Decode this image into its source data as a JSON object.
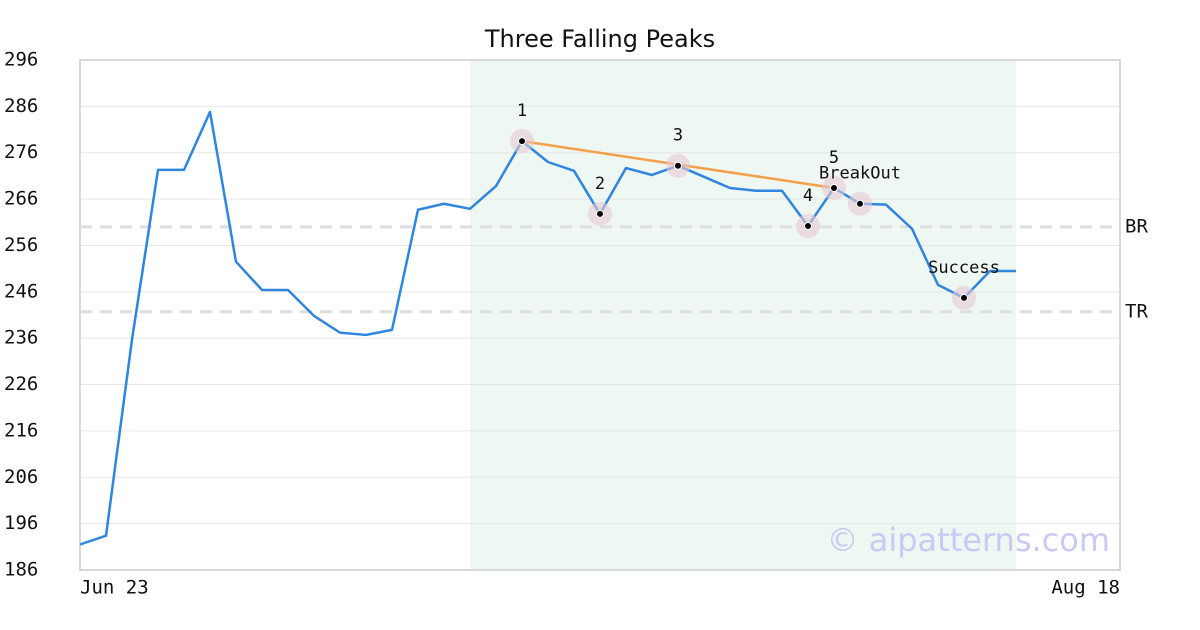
{
  "chart_data": {
    "type": "line",
    "title": "Three Falling Peaks",
    "categories": [
      "Jun 23",
      null,
      null,
      null,
      null,
      null,
      null,
      null,
      null,
      null,
      null,
      null,
      null,
      null,
      null,
      null,
      null,
      null,
      null,
      null,
      null,
      null,
      null,
      null,
      null,
      null,
      null,
      null,
      null,
      null,
      null,
      null,
      null,
      null,
      null,
      null,
      null,
      null,
      null,
      null,
      "Aug 18"
    ],
    "values": [
      191.5,
      193.4,
      235.7,
      272.3,
      272.3,
      284.8,
      252.5,
      246.4,
      246.4,
      240.8,
      237.2,
      236.7,
      237.8,
      263.7,
      265.0,
      263.9,
      268.8,
      278.5,
      274.0,
      272.1,
      262.8,
      272.7,
      271.2,
      273.2,
      270.8,
      268.4,
      267.8,
      267.8,
      260.2,
      268.4,
      265.0,
      264.8,
      259.6,
      247.5,
      244.7,
      250.5,
      250.5,
      null,
      null,
      null,
      null
    ],
    "color": "#2e86de",
    "ylim": [
      186,
      296
    ],
    "yticks": [
      186,
      196,
      206,
      216,
      226,
      236,
      246,
      256,
      266,
      276,
      286,
      296
    ],
    "grid": true,
    "highlight_range": [
      15,
      36
    ],
    "highlight_color": "#eef7f2",
    "trendline": {
      "x": [
        17,
        29
      ],
      "values": [
        278.5,
        268.4
      ],
      "color": "#f4a04a"
    },
    "reference_lines": [
      {
        "label": "BR",
        "value": 260.0
      },
      {
        "label": "TR",
        "value": 241.7
      }
    ],
    "annotations": [
      {
        "label": "1",
        "x": 17,
        "y": 278.5
      },
      {
        "label": "2",
        "x": 20,
        "y": 262.8
      },
      {
        "label": "3",
        "x": 23,
        "y": 273.2
      },
      {
        "label": "4",
        "x": 28,
        "y": 260.2
      },
      {
        "label": "5",
        "x": 29,
        "y": 268.4
      },
      {
        "label": "BreakOut",
        "x": 30,
        "y": 265.0
      },
      {
        "label": "Success",
        "x": 34,
        "y": 244.7
      }
    ],
    "watermark": "© aipatterns.com"
  }
}
